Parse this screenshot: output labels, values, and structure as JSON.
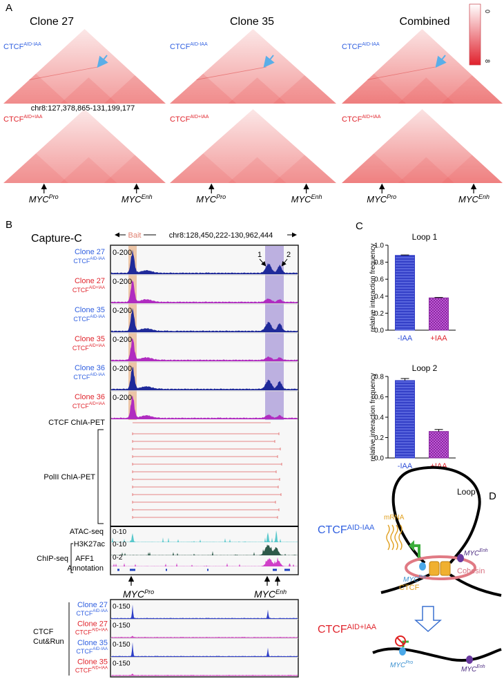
{
  "panel_a": {
    "label": "A",
    "titles": [
      "Clone 27",
      "Clone 35",
      "Combined"
    ],
    "scale_labels": [
      "0",
      "8"
    ],
    "scale_color": "#e0202c",
    "minus": {
      "text": "CTCF",
      "sup": "AID-IAA",
      "color": "#2f5fe0"
    },
    "plus": {
      "text": "CTCF",
      "sup": "AID+IAA",
      "color": "#e0242c"
    },
    "region": "chr8:127,378,865-131,199,177",
    "gene": "MYC",
    "pro": "Pro",
    "enh": "Enh"
  },
  "panel_b": {
    "label": "B",
    "title": "Capture-C",
    "bait": "Bait",
    "region": "chr8:128,450,222-130,962,444",
    "loop_labels": [
      "1",
      "2"
    ],
    "capture_tracks": [
      {
        "clone": "Clone 27",
        "text": "CTCF",
        "sup": "AID-IAA",
        "range": "0-200",
        "color": "#2f5fe0",
        "fill": "#1f2a9a"
      },
      {
        "clone": "Clone 27",
        "text": "CTCF",
        "sup": "AID+IAA",
        "range": "0-200",
        "color": "#e0242c",
        "fill": "#b02cc0"
      },
      {
        "clone": "Clone 35",
        "text": "CTCF",
        "sup": "AID-IAA",
        "range": "0-200",
        "color": "#2f5fe0",
        "fill": "#1f2a9a"
      },
      {
        "clone": "Clone 35",
        "text": "CTCF",
        "sup": "AID+IAA",
        "range": "0-200",
        "color": "#e0242c",
        "fill": "#b02cc0"
      },
      {
        "clone": "Clone 36",
        "text": "CTCF",
        "sup": "AID-IAA",
        "range": "0-200",
        "color": "#2f5fe0",
        "fill": "#1f2a9a"
      },
      {
        "clone": "Clone 36",
        "text": "CTCF",
        "sup": "AID+IAA",
        "range": "0-200",
        "color": "#e0242c",
        "fill": "#b02cc0"
      }
    ],
    "ctcf_chiapet": "CTCF ChIA-PET",
    "polii_chiapet": "PolII ChIA-PET",
    "atac": "ATAC-seq",
    "atac_range": "0-10",
    "chip": "ChIP-seq",
    "h3k27ac": "H3K27ac",
    "h3k27ac_range": "0-10",
    "aff1": "AFF1",
    "aff1_range": "0-2",
    "annotation": "Annotation",
    "gene": "MYC",
    "pro": "Pro",
    "enh": "Enh",
    "cutrun": [
      "CTCF",
      "Cut&Run"
    ],
    "cutrun_tracks": [
      {
        "clone": "Clone 27",
        "text": "CTCF",
        "sup": "AID-IAA",
        "range": "0-150",
        "color": "#2f5fe0",
        "fill": "#3040c8"
      },
      {
        "clone": "Clone 27",
        "text": "CTCF",
        "sup": "AID+IAA",
        "range": "0-150",
        "color": "#e0242c",
        "fill": "#d040c0"
      },
      {
        "clone": "Clone 35",
        "text": "CTCF",
        "sup": "AID-IAA",
        "range": "0-150",
        "color": "#2f5fe0",
        "fill": "#3040c8"
      },
      {
        "clone": "Clone 35",
        "text": "CTCF",
        "sup": "AID+IAA",
        "range": "0-150",
        "color": "#e0242c",
        "fill": "#d040c0"
      }
    ]
  },
  "panel_c": {
    "label": "C"
  },
  "chart_data": [
    {
      "type": "bar",
      "title": "Loop 1",
      "y_label": "relative interaction frequency",
      "categories": [
        "-IAA",
        "+IAA"
      ],
      "values": [
        0.88,
        0.38
      ],
      "errors": [
        0.005,
        0.005
      ],
      "colors": [
        "#3440c8",
        "#8a2aa0"
      ],
      "category_colors": [
        "#2f4fd8",
        "#e0242c"
      ],
      "ylim": [
        0,
        1.0
      ],
      "yticks": [
        {
          "value": 0,
          "label": "0.0"
        },
        0.2,
        0.4,
        0.6,
        0.8,
        {
          "value": 1,
          "label": "1.0"
        }
      ]
    },
    {
      "type": "bar",
      "title": "Loop 2",
      "y_label": "relative interaction frequency",
      "categories": [
        "-IAA",
        "+IAA"
      ],
      "values": [
        0.76,
        0.26
      ],
      "errors": [
        0.02,
        0.02
      ],
      "colors": [
        "#3440c8",
        "#8a2aa0"
      ],
      "category_colors": [
        "#2f4fd8",
        "#e0242c"
      ],
      "ylim": [
        0,
        0.8
      ],
      "yticks": [
        {
          "value": 0,
          "label": "0.0"
        },
        0.2,
        0.4,
        0.6,
        0.8
      ]
    }
  ],
  "panel_d": {
    "label": "D",
    "loop": "Loop",
    "mrna": "mRNA",
    "gene": "MYC",
    "pro": "Pro",
    "enh": "Enh",
    "cohesin": "Cohesin",
    "ctcf": "CTCF",
    "minus": {
      "text": "CTCF",
      "sup": "AID-IAA",
      "color": "#2f5fe0"
    },
    "plus": {
      "text": "CTCF",
      "sup": "AID+IAA",
      "color": "#e0242c"
    }
  }
}
